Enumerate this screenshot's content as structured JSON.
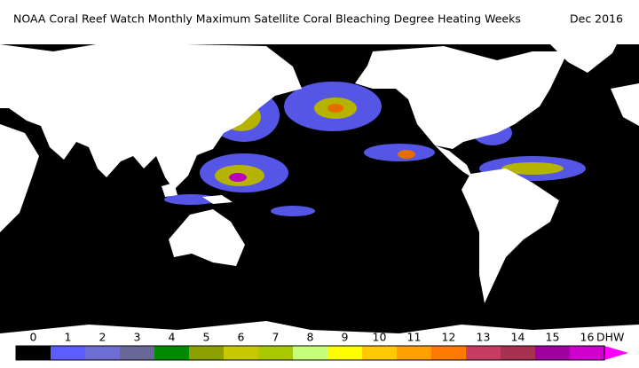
{
  "header": {
    "title": "NOAA Coral Reef Watch Monthly Maximum Satellite Coral Bleaching Degree Heating Weeks",
    "date": "Dec 2016"
  },
  "colorbar": {
    "unit": "DHW",
    "ticks": [
      0,
      1,
      2,
      3,
      4,
      5,
      6,
      7,
      8,
      9,
      10,
      11,
      12,
      13,
      14,
      15,
      16
    ],
    "colors": [
      "#000000",
      "#5c5cff",
      "#6e6ed2",
      "#686898",
      "#008a00",
      "#8ca000",
      "#c8c800",
      "#a8c800",
      "#c8ff78",
      "#ffff00",
      "#ffc800",
      "#ffa000",
      "#ff7800",
      "#c83c64",
      "#a83050",
      "#a000a0",
      "#d000d0"
    ],
    "arrow_color": "#ff00ff"
  }
}
